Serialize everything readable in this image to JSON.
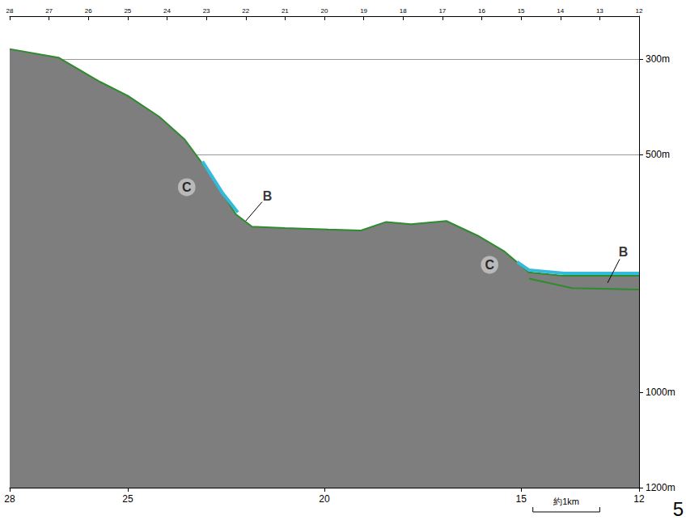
{
  "chart_data": {
    "type": "line",
    "xlim": [
      28,
      12
    ],
    "xticks": [
      28,
      25,
      20,
      15,
      12
    ],
    "x2ticks": [
      28,
      27,
      26,
      25,
      24,
      23,
      22,
      21,
      20,
      19,
      18,
      17,
      16,
      15,
      14,
      13,
      12
    ],
    "ylim": [
      210,
      1200
    ],
    "yticks": [
      {
        "value": 300,
        "label": "300m"
      },
      {
        "value": 500,
        "label": "500m"
      },
      {
        "value": 1000,
        "label": "1000m"
      },
      {
        "value": 1200,
        "label": "1200m"
      }
    ],
    "grid": true,
    "series": [
      {
        "type": "area",
        "color": "#2e8b2e",
        "x": [
          28,
          26.76,
          25.7,
          25.0,
          24.2,
          23.55,
          22.9,
          22.25,
          21.84,
          21.0,
          19.9,
          19.07,
          18.43,
          17.8,
          16.9,
          16.1,
          15.44,
          14.8,
          13.93,
          12
        ],
        "values": [
          279,
          297,
          348,
          377,
          421,
          469,
          542,
          626,
          652,
          655,
          658,
          660,
          642,
          647,
          640,
          671,
          703,
          748,
          755,
          755
        ]
      },
      {
        "type": "line",
        "color": "#2e8b2e",
        "x": [
          14.8,
          13.7,
          12
        ],
        "values": [
          761,
          781,
          784
        ]
      },
      {
        "type": "line",
        "color": "#33bbdd",
        "x": [
          23.1,
          22.6,
          22.2
        ],
        "values": [
          515,
          580,
          622
        ]
      },
      {
        "type": "line",
        "color": "#33bbdd",
        "x": [
          15.1,
          14.8,
          13.9,
          12
        ],
        "values": [
          726,
          743,
          750,
          750
        ]
      }
    ],
    "annotations": [
      {
        "text": "C",
        "x": 23.5,
        "y": 569
      },
      {
        "text": "C",
        "x": 15.8,
        "y": 732
      },
      {
        "text": "B",
        "x": 21.45,
        "y": 587,
        "target": [
          22.0,
          640
        ]
      },
      {
        "text": "B",
        "x": 12.4,
        "y": 705,
        "target": [
          12.8,
          770
        ]
      }
    ],
    "scale_bar": {
      "label": "約1km",
      "x": [
        14.7,
        13
      ]
    },
    "page_number": "5"
  }
}
